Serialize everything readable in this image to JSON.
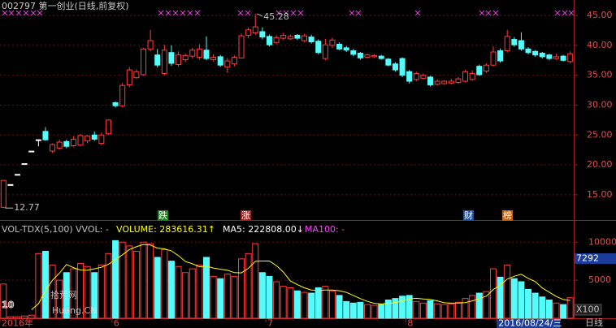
{
  "chart_data": [
    {
      "type": "candlestick",
      "title": "002797 第一创业(日线,前复权)",
      "categories": [
        "2016年",
        null,
        null,
        null,
        null,
        null,
        null,
        null,
        null,
        null,
        null,
        null,
        null,
        null,
        null,
        null,
        "6",
        null,
        null,
        null,
        null,
        null,
        null,
        null,
        null,
        null,
        null,
        null,
        null,
        null,
        null,
        null,
        null,
        null,
        null,
        null,
        null,
        null,
        "7",
        null,
        null,
        null,
        null,
        null,
        null,
        null,
        null,
        null,
        null,
        null,
        null,
        null,
        null,
        null,
        null,
        null,
        null,
        null,
        "8",
        null,
        null,
        null,
        null,
        null,
        null,
        null,
        null,
        null,
        null,
        null,
        null,
        "2016/08/24/三",
        null,
        null,
        null,
        null,
        null,
        null,
        null,
        null,
        null,
        null
      ],
      "open": [
        12.9,
        16.7,
        18.4,
        20.2,
        22.3,
        24.2,
        25.6,
        22.3,
        22.8,
        23.9,
        23.2,
        23.3,
        24.0,
        25.0,
        23.6,
        25.2,
        30.4,
        29.9,
        33.4,
        34.6,
        35.1,
        39.4,
        38.4,
        35.3,
        38.8,
        36.8,
        37.6,
        38.2,
        38.0,
        39.2,
        37.6,
        38.1,
        36.4,
        36.9,
        37.9,
        41.7,
        42.1,
        42.3,
        41.5,
        40.5,
        41.2,
        41.1,
        41.7,
        40.8,
        41.4,
        40.7,
        37.8,
        40.0,
        40.2,
        39.6,
        39.1,
        38.7,
        38.0,
        38.1,
        38.2,
        37.7,
        36.9,
        37.8,
        35.6,
        34.3,
        34.5,
        34.7,
        33.5,
        33.6,
        33.7,
        33.8,
        34.0,
        34.3,
        36.5,
        35.7,
        36.7,
        39.1,
        39.1,
        41.0,
        40.8,
        39.4,
        39.0,
        38.7,
        38.4,
        37.8,
        38.2,
        37.3
      ],
      "high": [
        17.4,
        16.7,
        18.4,
        20.2,
        22.3,
        24.2,
        26.3,
        23.6,
        24.2,
        24.2,
        24.8,
        25.2,
        25.0,
        25.6,
        25.4,
        27.6,
        30.6,
        33.7,
        36.4,
        36.0,
        39.6,
        42.6,
        39.4,
        40.1,
        40.0,
        39.0,
        38.6,
        39.6,
        40.2,
        41.5,
        38.5,
        38.4,
        37.9,
        38.3,
        42.0,
        43.0,
        45.28,
        43.0,
        41.8,
        41.7,
        42.1,
        41.8,
        41.9,
        41.9,
        41.8,
        41.0,
        41.1,
        41.3,
        40.5,
        39.9,
        39.4,
        38.9,
        38.6,
        38.5,
        38.4,
        37.9,
        37.2,
        38.0,
        35.9,
        35.6,
        35.3,
        34.9,
        34.3,
        34.2,
        34.4,
        34.7,
        35.9,
        35.8,
        36.8,
        37.0,
        39.8,
        39.5,
        42.6,
        41.4,
        42.2,
        39.7,
        39.2,
        38.9,
        38.6,
        38.6,
        38.4,
        39.0
      ],
      "low": [
        12.77,
        16.7,
        18.4,
        20.2,
        22.3,
        23.1,
        24.0,
        22.0,
        22.5,
        22.8,
        23.0,
        23.1,
        23.6,
        24.0,
        23.3,
        25.0,
        29.6,
        29.6,
        33.0,
        34.4,
        34.9,
        39.0,
        36.3,
        35.0,
        36.6,
        36.4,
        37.2,
        37.8,
        37.6,
        37.5,
        37.3,
        36.4,
        35.4,
        36.5,
        37.8,
        41.2,
        41.8,
        41.0,
        39.8,
        40.2,
        40.9,
        40.9,
        40.9,
        40.5,
        40.3,
        38.5,
        37.5,
        39.6,
        39.2,
        38.9,
        38.2,
        37.6,
        37.8,
        37.9,
        37.6,
        36.5,
        35.6,
        34.7,
        33.6,
        34.0,
        34.3,
        33.1,
        33.3,
        33.4,
        33.5,
        33.6,
        33.8,
        34.1,
        34.9,
        35.4,
        36.5,
        37.1,
        38.8,
        39.8,
        39.1,
        38.5,
        38.1,
        37.8,
        37.5,
        37.6,
        37.3,
        37.0
      ],
      "close": [
        17.4,
        16.7,
        18.4,
        20.2,
        22.3,
        24.2,
        24.2,
        23.4,
        23.8,
        23.1,
        24.3,
        24.9,
        24.8,
        24.3,
        25.0,
        27.5,
        29.9,
        33.3,
        35.9,
        35.6,
        39.4,
        40.8,
        36.7,
        39.2,
        37.0,
        38.4,
        38.3,
        39.2,
        39.4,
        37.8,
        38.0,
        36.7,
        37.4,
        38.0,
        41.6,
        42.6,
        43.1,
        41.4,
        40.1,
        41.3,
        41.7,
        41.5,
        41.2,
        41.6,
        40.6,
        38.8,
        40.1,
        40.9,
        39.4,
        39.2,
        38.5,
        37.9,
        38.4,
        38.3,
        37.8,
        36.7,
        35.9,
        35.0,
        34.0,
        35.3,
        35.0,
        33.4,
        34.0,
        34.0,
        34.0,
        34.4,
        35.6,
        35.3,
        35.1,
        36.7,
        38.9,
        37.4,
        41.5,
        40.1,
        39.4,
        38.8,
        38.4,
        38.1,
        37.8,
        38.1,
        37.5,
        38.6
      ],
      "colors": {
        "up": "#ff3c3c",
        "down": "#54fcfc",
        "flat": "#ffffff"
      },
      "ylim": [
        10.9,
        47.6
      ],
      "yticks": [
        {
          "value": 15,
          "label": "15.00"
        },
        {
          "value": 20,
          "label": "20.00"
        },
        {
          "value": 25,
          "label": "25.00"
        },
        {
          "value": 30,
          "label": "30.00"
        },
        {
          "value": 35,
          "label": "35.00"
        },
        {
          "value": 40,
          "label": "40.00"
        },
        {
          "value": 45,
          "label": "45.00"
        }
      ],
      "grid": true,
      "event_labels": [
        "跌",
        "涨",
        "财",
        "榜"
      ],
      "period_label": "日线"
    },
    {
      "type": "bar",
      "title": "VOL-TDX(5,100)",
      "readouts": [
        "VVOL: -",
        "VOLUME: 283616.31↑",
        "MA5: 222808.00↓",
        "MA100: -"
      ],
      "values": [
        4500,
        200,
        200,
        300,
        400,
        8500,
        8800,
        7000,
        5000,
        6000,
        6500,
        7200,
        6800,
        6000,
        7000,
        8500,
        10200,
        10000,
        9500,
        8800,
        10000,
        9800,
        8000,
        9000,
        7500,
        6800,
        6000,
        6500,
        7000,
        8000,
        5500,
        5200,
        5800,
        5500,
        7800,
        8500,
        9800,
        6000,
        5500,
        4800,
        4200,
        4000,
        3600,
        3400,
        3300,
        4000,
        4200,
        3600,
        3000,
        2200,
        2000,
        2100,
        1800,
        1700,
        1800,
        2400,
        2600,
        2900,
        3000,
        2200,
        2000,
        2300,
        1900,
        1800,
        1900,
        2100,
        2600,
        3000,
        3300,
        3500,
        6500,
        5400,
        7000,
        5200,
        4800,
        3800,
        3300,
        2800,
        2400,
        2000,
        1800,
        2700
      ],
      "ma5": {
        "color": "#ffff00",
        "values": [
          null,
          null,
          null,
          null,
          1120,
          1920,
          3640,
          5000,
          5940,
          7060,
          6660,
          6340,
          6300,
          6500,
          6700,
          7100,
          7700,
          8340,
          9040,
          9400,
          9700,
          9620,
          9220,
          9120,
          8860,
          8220,
          7460,
          7160,
          6760,
          6860,
          6600,
          6440,
          6300,
          6000,
          5960,
          6560,
          7480,
          7520,
          7520,
          6920,
          6060,
          4900,
          4420,
          4000,
          3700,
          3660,
          3700,
          3700,
          3620,
          3400,
          3000,
          2580,
          2220,
          1960,
          1880,
          1960,
          2060,
          2280,
          2540,
          2620,
          2540,
          2480,
          2280,
          2040,
          1980,
          2000,
          2060,
          2280,
          2580,
          2900,
          3780,
          4340,
          5140,
          5520,
          5780,
          5240,
          4820,
          3980,
          3420,
          2860,
          2460,
          2340
        ]
      },
      "ylim": [
        0,
        12800
      ],
      "yticks": [
        5000,
        10000
      ],
      "cursor_value": 7292,
      "unit_label": "X100"
    }
  ],
  "watermark": [
    "10",
    "拾荒网",
    "Huang.CN"
  ]
}
